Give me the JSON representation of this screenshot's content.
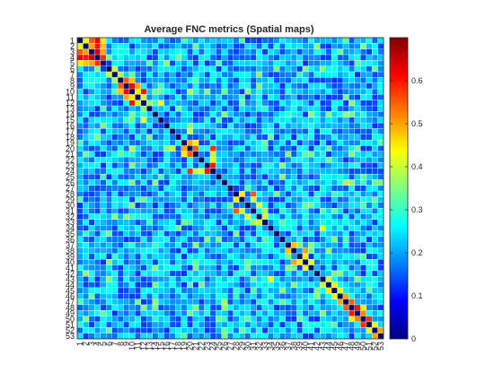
{
  "chart_data": {
    "type": "heatmap",
    "title": "Average FNC metrics (Spatial maps)",
    "xlabel": "",
    "ylabel": "",
    "size": 53,
    "categories": [
      "1",
      "2",
      "3",
      "4",
      "5",
      "6",
      "7",
      "8",
      "9",
      "10",
      "11",
      "12",
      "13",
      "14",
      "15",
      "16",
      "17",
      "18",
      "19",
      "20",
      "21",
      "22",
      "23",
      "24",
      "25",
      "26",
      "27",
      "28",
      "29",
      "30",
      "31",
      "32",
      "33",
      "34",
      "35",
      "36",
      "37",
      "38",
      "39",
      "40",
      "41",
      "42",
      "43",
      "44",
      "45",
      "46",
      "47",
      "48",
      "49",
      "50",
      "51",
      "52",
      "53"
    ],
    "diagonal_value": 0,
    "clim": [
      0,
      0.7
    ],
    "colormap": "jet",
    "colorbar": {
      "ticks": [
        0,
        0.1,
        0.2,
        0.3,
        0.4,
        0.5,
        0.6
      ],
      "tick_labels": [
        "0",
        "0.1",
        "0.2",
        "0.3",
        "0.4",
        "0.5",
        "0.6"
      ],
      "placement": "right"
    },
    "grid": true,
    "symmetric": true,
    "notable_cells": [
      {
        "row": 1,
        "col": 2,
        "value": 0.42
      },
      {
        "row": 1,
        "col": 3,
        "value": 0.55
      },
      {
        "row": 1,
        "col": 4,
        "value": 0.62
      },
      {
        "row": 1,
        "col": 5,
        "value": 0.45
      },
      {
        "row": 2,
        "col": 3,
        "value": 0.5
      },
      {
        "row": 2,
        "col": 4,
        "value": 0.6
      },
      {
        "row": 2,
        "col": 5,
        "value": 0.48
      },
      {
        "row": 3,
        "col": 4,
        "value": 0.65
      },
      {
        "row": 3,
        "col": 5,
        "value": 0.5
      },
      {
        "row": 4,
        "col": 5,
        "value": 0.58
      },
      {
        "row": 6,
        "col": 7,
        "value": 0.4
      },
      {
        "row": 7,
        "col": 8,
        "value": 0.38
      },
      {
        "row": 8,
        "col": 9,
        "value": 0.55
      },
      {
        "row": 8,
        "col": 10,
        "value": 0.48
      },
      {
        "row": 9,
        "col": 10,
        "value": 0.62
      },
      {
        "row": 9,
        "col": 11,
        "value": 0.5
      },
      {
        "row": 10,
        "col": 11,
        "value": 0.45
      },
      {
        "row": 10,
        "col": 12,
        "value": 0.6
      },
      {
        "row": 11,
        "col": 12,
        "value": 0.4
      },
      {
        "row": 12,
        "col": 13,
        "value": 0.36
      },
      {
        "row": 12,
        "col": 15,
        "value": 0.42
      },
      {
        "row": 19,
        "col": 20,
        "value": 0.5
      },
      {
        "row": 19,
        "col": 21,
        "value": 0.45
      },
      {
        "row": 20,
        "col": 21,
        "value": 0.55
      },
      {
        "row": 20,
        "col": 24,
        "value": 0.58
      },
      {
        "row": 21,
        "col": 24,
        "value": 0.4
      },
      {
        "row": 22,
        "col": 24,
        "value": 0.42
      },
      {
        "row": 23,
        "col": 24,
        "value": 0.6
      },
      {
        "row": 10,
        "col": 20,
        "value": 0.38
      },
      {
        "row": 16,
        "col": 20,
        "value": 0.36
      },
      {
        "row": 17,
        "col": 20,
        "value": 0.4
      },
      {
        "row": 28,
        "col": 29,
        "value": 0.45
      },
      {
        "row": 28,
        "col": 31,
        "value": 0.55
      },
      {
        "row": 29,
        "col": 31,
        "value": 0.4
      },
      {
        "row": 30,
        "col": 32,
        "value": 0.42
      },
      {
        "row": 31,
        "col": 33,
        "value": 0.38
      },
      {
        "row": 32,
        "col": 33,
        "value": 0.4
      },
      {
        "row": 37,
        "col": 38,
        "value": 0.48
      },
      {
        "row": 38,
        "col": 40,
        "value": 0.5
      },
      {
        "row": 39,
        "col": 40,
        "value": 0.45
      },
      {
        "row": 40,
        "col": 41,
        "value": 0.42
      },
      {
        "row": 43,
        "col": 44,
        "value": 0.4
      },
      {
        "row": 44,
        "col": 45,
        "value": 0.45
      },
      {
        "row": 45,
        "col": 46,
        "value": 0.42
      },
      {
        "row": 46,
        "col": 47,
        "value": 0.5
      },
      {
        "row": 47,
        "col": 48,
        "value": 0.55
      },
      {
        "row": 48,
        "col": 49,
        "value": 0.6
      },
      {
        "row": 48,
        "col": 50,
        "value": 0.45
      },
      {
        "row": 49,
        "col": 50,
        "value": 0.52
      },
      {
        "row": 50,
        "col": 51,
        "value": 0.58
      },
      {
        "row": 51,
        "col": 52,
        "value": 0.42
      },
      {
        "row": 52,
        "col": 53,
        "value": 0.5
      },
      {
        "row": 26,
        "col": 47,
        "value": 0.38
      },
      {
        "row": 26,
        "col": 48,
        "value": 0.36
      },
      {
        "row": 34,
        "col": 43,
        "value": 0.42
      },
      {
        "row": 2,
        "col": 42,
        "value": 0.36
      },
      {
        "row": 14,
        "col": 41,
        "value": 0.36
      }
    ]
  }
}
